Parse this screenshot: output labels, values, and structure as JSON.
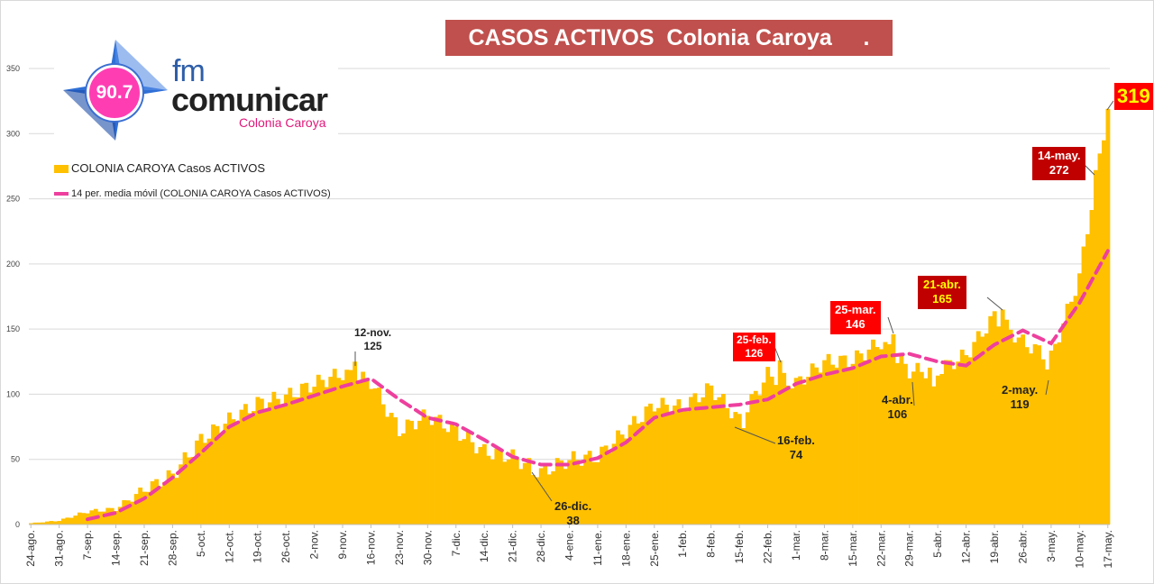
{
  "title": "CASOS ACTIVOS  Colonia Caroya     .",
  "logo": {
    "frequency": "90.7",
    "fm": "fm",
    "name": "comunicar",
    "city": "Colonia Caroya"
  },
  "colors": {
    "bars": "#ffc000",
    "moving_average": "#ee3f9e",
    "title_bg": "#c0504d",
    "gridline": "#d9d9d9",
    "label_red": "#ff0000",
    "label_dark_red": "#c00000",
    "label_yellow_text": "#ffff00"
  },
  "chart_data": {
    "type": "bar",
    "title": "",
    "xlabel": "",
    "ylabel": "",
    "ylim": [
      0,
      350
    ],
    "yticks": [
      0,
      50,
      100,
      150,
      200,
      250,
      300,
      350
    ],
    "grid": true,
    "legend_position": "top-left",
    "x_start": "24-ago.",
    "x_end": "17-may.",
    "categories": [
      "24-ago.",
      "31-ago.",
      "7-sep.",
      "14-sep.",
      "21-sep.",
      "28-sep.",
      "5-oct.",
      "12-oct.",
      "19-oct.",
      "26-oct.",
      "2-nov.",
      "9-nov.",
      "16-nov.",
      "23-nov.",
      "30-nov.",
      "7-dic.",
      "14-dic.",
      "21-dic.",
      "28-dic.",
      "4-ene.",
      "11-ene.",
      "18-ene.",
      "25-ene.",
      "1-feb.",
      "8-feb.",
      "15-feb.",
      "22-feb.",
      "1-mar.",
      "8-mar.",
      "15-mar.",
      "22-mar.",
      "29-mar.",
      "5-abr.",
      "12-abr.",
      "19-abr.",
      "26-abr.",
      "3-may.",
      "10-may.",
      "17-may."
    ],
    "series": [
      {
        "name": "COLONIA CAROYA Casos ACTIVOS",
        "type": "bar",
        "weekly_points": [
          1,
          3,
          10,
          12,
          27,
          38,
          65,
          80,
          93,
          98,
          108,
          116,
          110,
          72,
          84,
          72,
          56,
          52,
          40,
          50,
          52,
          72,
          92,
          90,
          105,
          80,
          115,
          108,
          125,
          126,
          140,
          118,
          118,
          130,
          160,
          140,
          128,
          190,
          319
        ]
      },
      {
        "name": "14 per. media móvil (COLONIA CAROYA Casos ACTIVOS)",
        "type": "line",
        "weekly_points": [
          null,
          null,
          4,
          9,
          20,
          36,
          55,
          75,
          86,
          92,
          99,
          106,
          112,
          96,
          82,
          77,
          65,
          52,
          46,
          46,
          51,
          63,
          82,
          88,
          90,
          92,
          96,
          108,
          115,
          120,
          129,
          131,
          125,
          122,
          138,
          149,
          139,
          170,
          210
        ]
      }
    ],
    "annotations": [
      {
        "date": "12-nov.",
        "label": "12-nov.",
        "value": "125"
      },
      {
        "date": "26-dic.",
        "label": "26-dic.",
        "value": "38"
      },
      {
        "date": "16-feb.",
        "label": "16-feb.",
        "value": "74"
      },
      {
        "date": "25-feb.",
        "label": "25-feb.",
        "value": "126"
      },
      {
        "date": "25-mar.",
        "label": "25-mar.",
        "value": "146"
      },
      {
        "date": "4-abr.",
        "label": "4-abr.",
        "value": "106"
      },
      {
        "date": "21-abr.",
        "label": "21-abr.",
        "value": "165"
      },
      {
        "date": "2-may.",
        "label": "2-may.",
        "value": "119"
      },
      {
        "date": "14-may.",
        "label": "14-may.",
        "value": "272"
      },
      {
        "date": "17-may.",
        "value": "319"
      }
    ]
  }
}
